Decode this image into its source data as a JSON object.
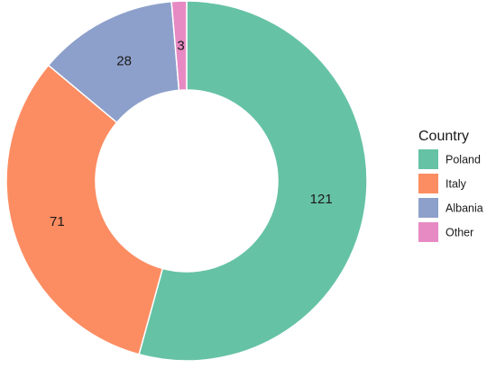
{
  "chart_data": {
    "type": "pie",
    "style": "donut",
    "legend_title": "Country",
    "legend_position": "right",
    "categories": [
      "Poland",
      "Italy",
      "Albania",
      "Other"
    ],
    "values": [
      121,
      71,
      28,
      3
    ],
    "colors": [
      "#66c2a5",
      "#fc8d62",
      "#8da0cb",
      "#e78ac3"
    ],
    "value_labels": [
      "121",
      "71",
      "28",
      "3"
    ]
  }
}
